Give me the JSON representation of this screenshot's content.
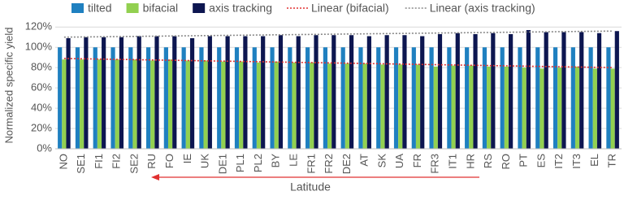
{
  "chart_data": {
    "type": "bar",
    "y_label": "Normalized specific yield",
    "x_label": "Latitude",
    "categories": [
      "NO",
      "SE1",
      "FI1",
      "FI2",
      "SE2",
      "RU",
      "FO",
      "IE",
      "UK",
      "DE1",
      "PL1",
      "PL2",
      "BY",
      "LE",
      "FR1",
      "FR2",
      "DE2",
      "AT",
      "SK",
      "UA",
      "FR",
      "FR3",
      "IT1",
      "HR",
      "RS",
      "RO",
      "PT",
      "ES",
      "IT2",
      "IT3",
      "EL",
      "TR"
    ],
    "series": [
      {
        "name": "tilted",
        "color": "#1f80c0",
        "values": [
          100,
          100,
          100,
          100,
          100,
          100,
          100,
          100,
          100,
          100,
          100,
          100,
          100,
          100,
          100,
          100,
          100,
          100,
          100,
          100,
          100,
          100,
          100,
          100,
          100,
          100,
          100,
          100,
          100,
          100,
          100,
          100
        ]
      },
      {
        "name": "bifacial",
        "color": "#92d050",
        "values": [
          88,
          88,
          88,
          88,
          88,
          87,
          88,
          87,
          87,
          86,
          86,
          85,
          86,
          85,
          85,
          84,
          84,
          84,
          83,
          83,
          83,
          81,
          82,
          82,
          81,
          81,
          80,
          79,
          80,
          81,
          79,
          79
        ]
      },
      {
        "name": "axis tracking",
        "color": "#0d1650",
        "values": [
          109,
          110,
          110,
          110,
          111,
          111,
          111,
          109,
          111,
          111,
          111,
          111,
          112,
          111,
          112,
          112,
          112,
          111,
          112,
          112,
          111,
          113,
          114,
          113,
          114,
          113,
          117,
          115,
          115,
          115,
          114,
          116
        ]
      }
    ],
    "trendlines": [
      {
        "name": "Linear (bifacial)",
        "color": "#e03030",
        "values": [
          89,
          80
        ]
      },
      {
        "name": "Linear (axis tracking)",
        "color": "#888888",
        "values": [
          110,
          116
        ]
      }
    ],
    "ylim": [
      0,
      125
    ],
    "yticks": [
      {
        "value": 0,
        "label": "0%"
      },
      {
        "value": 20,
        "label": "20%"
      },
      {
        "value": 40,
        "label": "40%"
      },
      {
        "value": 60,
        "label": "60%"
      },
      {
        "value": 80,
        "label": "80%"
      },
      {
        "value": 100,
        "label": "100%"
      },
      {
        "value": 120,
        "label": "120%"
      }
    ],
    "grid": true,
    "legend": "top"
  }
}
